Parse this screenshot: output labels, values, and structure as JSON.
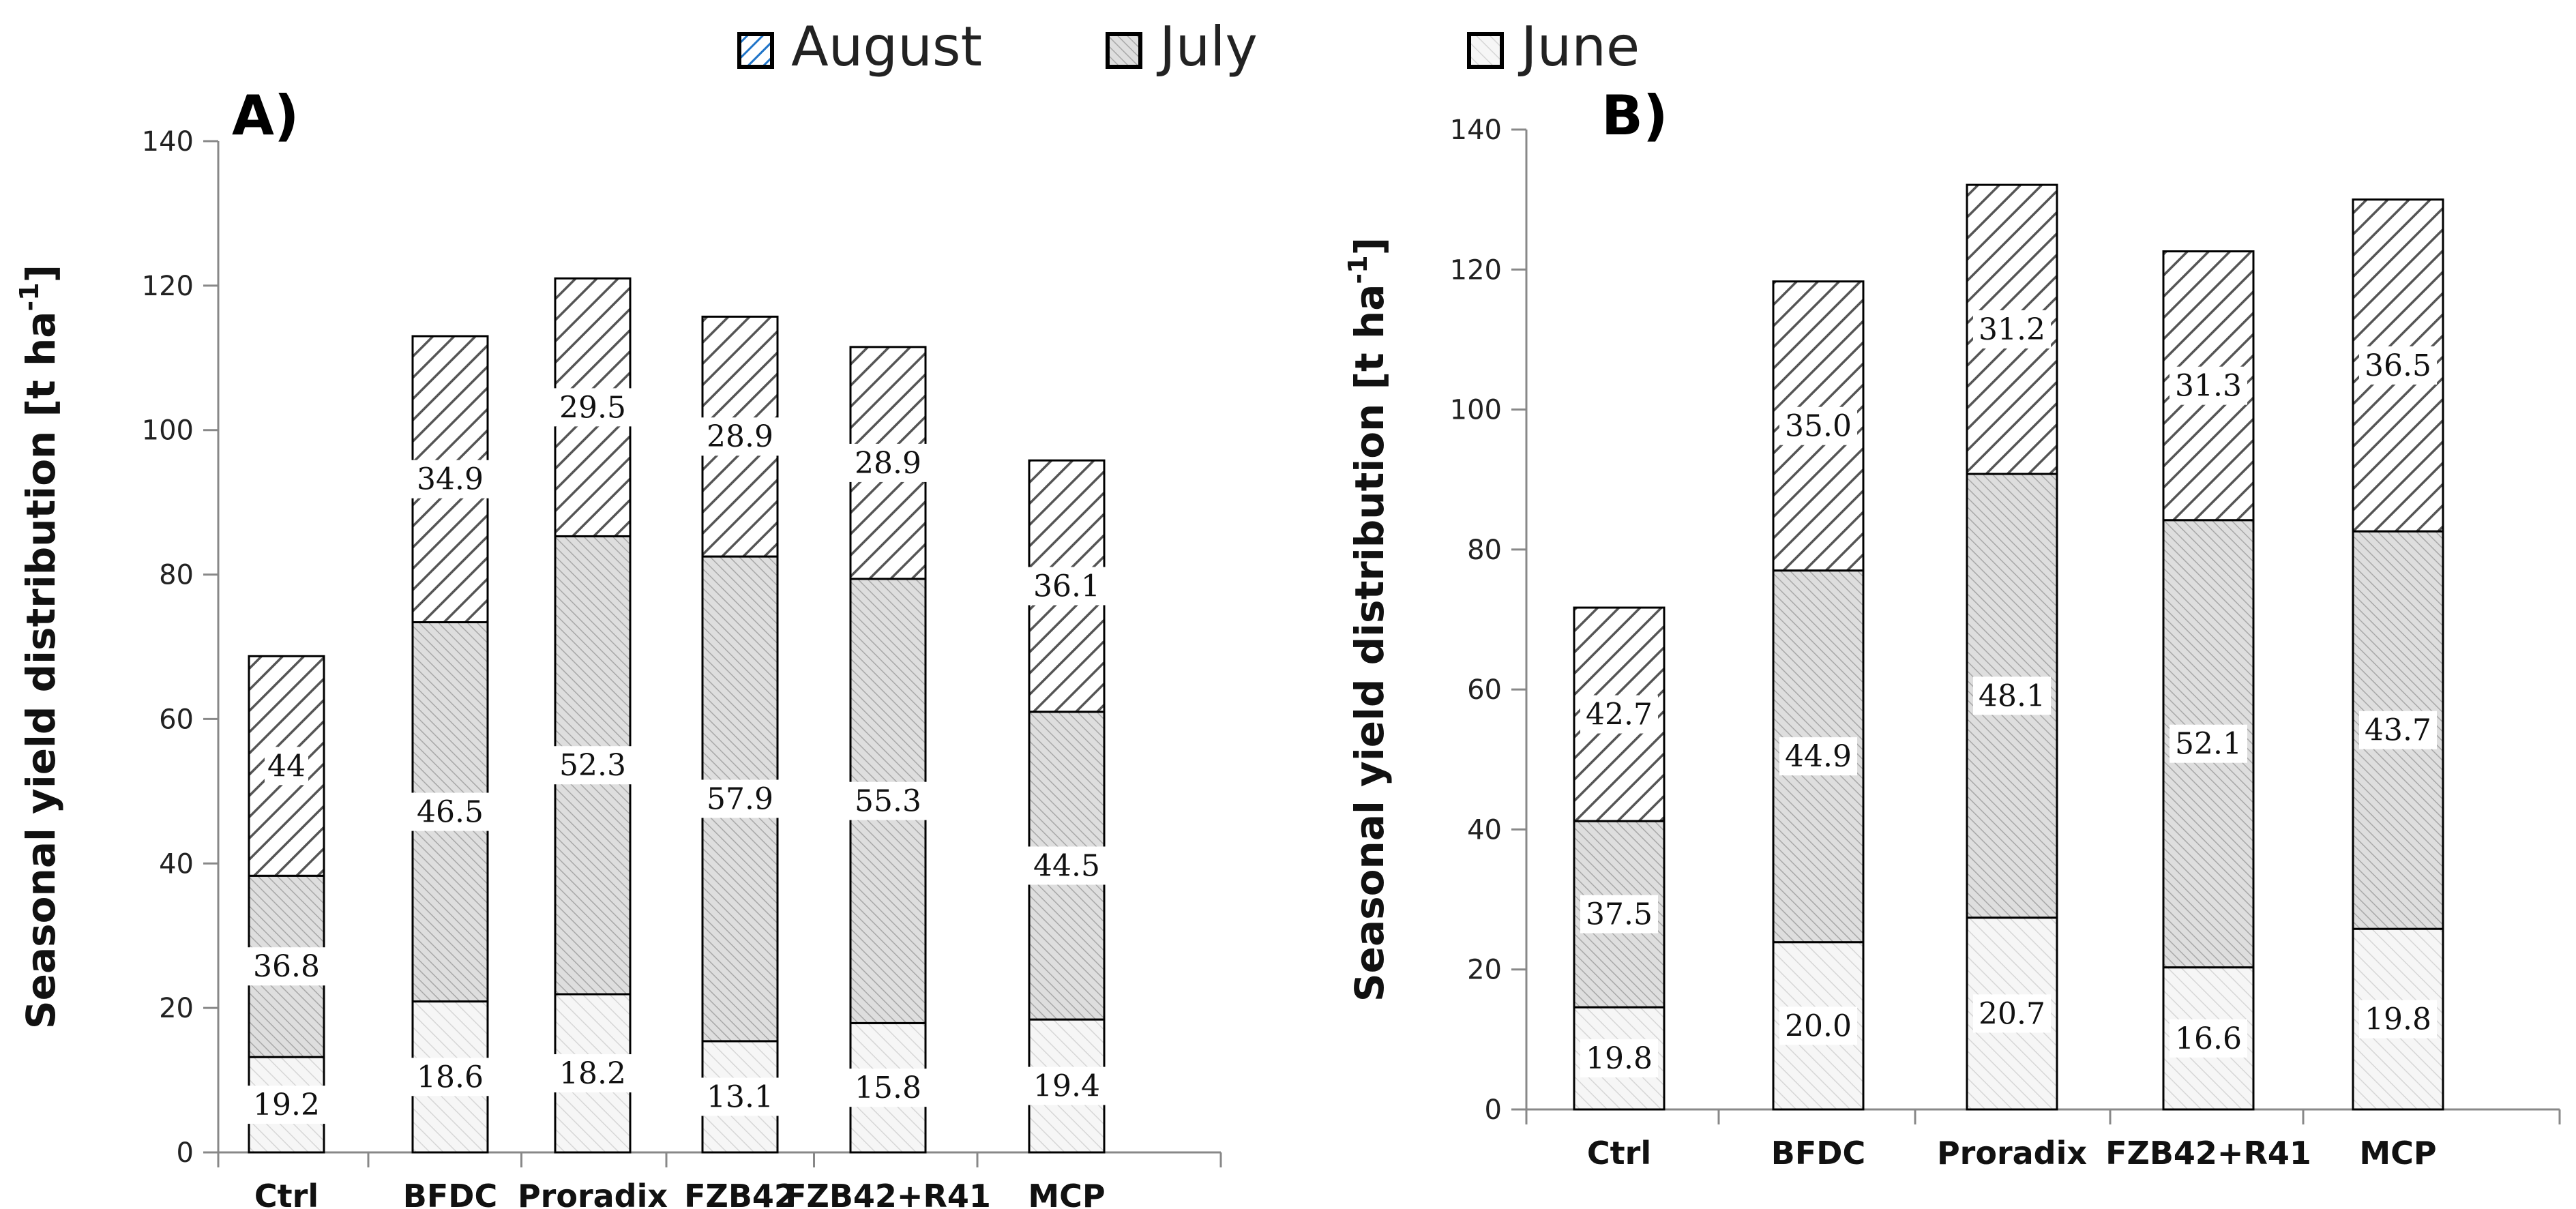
{
  "legend": [
    {
      "name": "August",
      "pattern": "august-legend"
    },
    {
      "name": "July",
      "pattern": "july"
    },
    {
      "name": "June",
      "pattern": "june"
    }
  ],
  "chart_data": [
    {
      "type": "bar",
      "stacked": true,
      "panel": "A)",
      "ylabel": "Seasonal yield distribution [t ha",
      "ylabel_sup": "-1",
      "ylabel_end": "]",
      "ylim": [
        0,
        140
      ],
      "yticks": [
        0,
        20,
        40,
        60,
        80,
        100,
        120,
        140
      ],
      "categories": [
        "Ctrl",
        "BFDC",
        "Proradix",
        "FZB42",
        "FZB42+R41",
        "MCP"
      ],
      "series": [
        {
          "name": "June",
          "values": [
            13.2,
            20.9,
            21.9,
            15.4,
            17.9,
            18.4
          ],
          "labels": [
            "19.2",
            "18.6",
            "18.2",
            "13.1",
            "15.8",
            "19.4"
          ]
        },
        {
          "name": "July",
          "values": [
            25.1,
            52.5,
            63.4,
            67.1,
            61.5,
            42.6
          ],
          "labels": [
            "36.8",
            "46.5",
            "52.3",
            "57.9",
            "55.3",
            "44.5"
          ]
        },
        {
          "name": "August",
          "values": [
            30.4,
            39.6,
            35.7,
            33.2,
            32.1,
            34.8
          ],
          "labels": [
            "44",
            "34.9",
            "29.5",
            "28.9",
            "28.9",
            "36.1"
          ]
        }
      ]
    },
    {
      "type": "bar",
      "stacked": true,
      "panel": "B)",
      "ylabel": "Seasonal yield distribution [t ha",
      "ylabel_sup": "-1",
      "ylabel_end": "]",
      "ylim": [
        0,
        140
      ],
      "yticks": [
        0,
        20,
        40,
        60,
        80,
        100,
        120,
        140
      ],
      "categories": [
        "Ctrl",
        "BFDC",
        "Proradix",
        "FZB42+R41",
        "MCP"
      ],
      "series": [
        {
          "name": "June",
          "values": [
            14.6,
            23.9,
            27.4,
            20.3,
            25.8
          ],
          "labels": [
            "19.8",
            "20.0",
            "20.7",
            "16.6",
            "19.8"
          ]
        },
        {
          "name": "July",
          "values": [
            26.6,
            53.1,
            63.4,
            63.9,
            56.8
          ],
          "labels": [
            "37.5",
            "44.9",
            "48.1",
            "52.1",
            "43.7"
          ]
        },
        {
          "name": "August",
          "values": [
            30.5,
            41.3,
            41.3,
            38.4,
            47.4
          ],
          "labels": [
            "42.7",
            "35.0",
            "31.2",
            "31.3",
            "36.5"
          ]
        }
      ]
    }
  ]
}
